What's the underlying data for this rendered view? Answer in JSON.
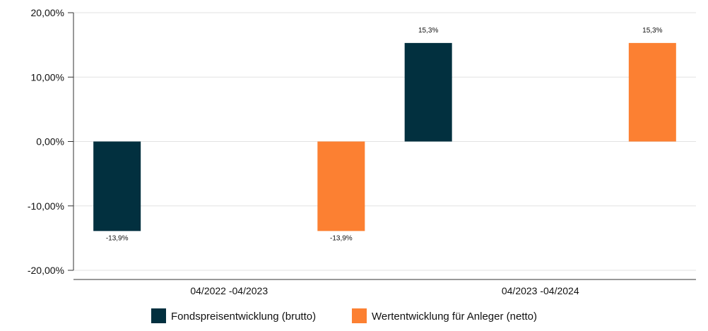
{
  "chart_data": {
    "type": "bar",
    "categories": [
      "04/2022 -04/2023",
      "04/2023 -04/2024"
    ],
    "series": [
      {
        "name": "Fondspreisentwicklung (brutto)",
        "values": [
          -13.9,
          15.3
        ],
        "labels": [
          "-13,9%",
          "15,3%"
        ],
        "color": "#02303f"
      },
      {
        "name": "Wertentwicklung für Anleger (netto)",
        "values": [
          -13.9,
          15.3
        ],
        "labels": [
          "-13,9%",
          "15,3%"
        ],
        "color": "#fc8032"
      }
    ],
    "ylim": [
      -20,
      20
    ],
    "yticks": [
      20,
      10,
      0,
      -10,
      -20
    ],
    "ytick_labels": [
      "20,00%",
      "10,00%",
      "0,00%",
      "-10,00%",
      "-20,00%"
    ],
    "grid": true,
    "legend": "bottom-center"
  }
}
